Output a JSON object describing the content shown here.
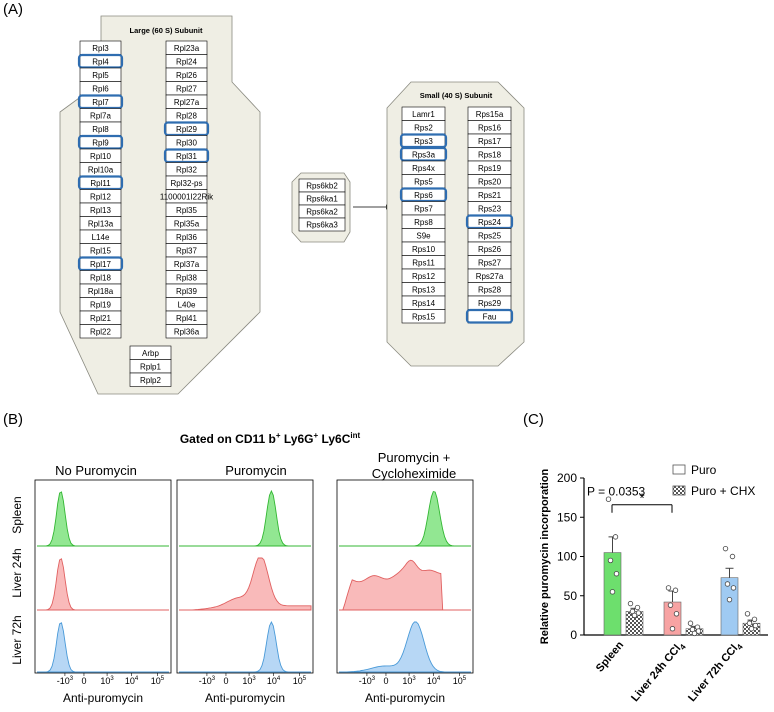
{
  "panels": {
    "A": "(A)",
    "B": "(B)",
    "C": "(C)"
  },
  "colors": {
    "green": "#6ddf6d",
    "red": "#f7a3a3",
    "blue": "#9fcaf2",
    "hl": "#2f6db0",
    "hex": "#efeee4",
    "hexStroke": "#8a8a80"
  },
  "large": {
    "title": "Large (60 S) Subunit",
    "left": [
      "Rpl3",
      "Rpl4",
      "Rpl5",
      "Rpl6",
      "Rpl7",
      "Rpl7a",
      "Rpl8",
      "Rpl9",
      "Rpl10",
      "Rpl10a",
      "Rpl11",
      "Rpl12",
      "Rpl13",
      "Rpl13a",
      "L14e",
      "Rpl15",
      "Rpl17",
      "Rpl18",
      "Rpl18a",
      "Rpl19",
      "Rpl21",
      "Rpl22"
    ],
    "right": [
      "Rpl23a",
      "Rpl24",
      "Rpl26",
      "Rpl27",
      "Rpl27a",
      "Rpl28",
      "Rpl29",
      "Rpl30",
      "Rpl31",
      "Rpl32",
      "Rpl32-ps",
      "1100001I22Rik",
      "Rpl35",
      "Rpl35a",
      "Rpl36",
      "Rpl37",
      "Rpl37a",
      "Rpl38",
      "Rpl39",
      "L40e",
      "Rpl41",
      "Rpl36a"
    ],
    "bottom": [
      "Arbp",
      "Rplp1",
      "Rplp2"
    ],
    "highlight_left": [
      "Rpl4",
      "Rpl7",
      "Rpl9",
      "Rpl11",
      "Rpl17"
    ],
    "highlight_right": [
      "Rpl29",
      "Rpl31"
    ]
  },
  "small": {
    "title": "Small (40 S) Subunit",
    "left": [
      "Lamr1",
      "Rps2",
      "Rps3",
      "Rps3a",
      "Rps4x",
      "Rps5",
      "Rps6",
      "Rps7",
      "Rps8",
      "S9e",
      "Rps10",
      "Rps11",
      "Rps12",
      "Rps13",
      "Rps14",
      "Rps15"
    ],
    "right": [
      "Rps15a",
      "Rps16",
      "Rps17",
      "Rps18",
      "Rps19",
      "Rps20",
      "Rps21",
      "Rps23",
      "Rps24",
      "Rps25",
      "Rps26",
      "Rps27",
      "Rps27a",
      "Rps28",
      "Rps29",
      "Fau"
    ],
    "highlight_left": [
      "Rps3",
      "Rps3a",
      "Rps6"
    ],
    "highlight_right": [
      "Rps24",
      "Fau"
    ]
  },
  "kinases": [
    "Rps6kb2",
    "Rps6ka1",
    "Rps6ka2",
    "Rps6ka3"
  ],
  "flow": {
    "gated_main": "Gated on CD11 b",
    "gated_sup1": "+",
    "gated_mid": " Ly6G",
    "gated_sup2": "+",
    "gated_mid2": " Ly6C",
    "gated_sup3": "int",
    "columns": [
      "No Puromycin",
      "Puromycin",
      "Puromycin +",
      "Cycloheximide"
    ],
    "rows": [
      "Spleen",
      "Liver 24h",
      "Liver 72h"
    ],
    "xlabel": "Anti-puromycin",
    "ticks": [
      "-10",
      "3",
      "0",
      "10",
      "3",
      "10",
      "4",
      "10",
      "5"
    ]
  },
  "chart_data": {
    "type": "bar",
    "ylabel": "Relative puromycin incorporation",
    "ylim": [
      0,
      200
    ],
    "yticks": [
      "0",
      "50",
      "100",
      "150",
      "200"
    ],
    "categories": [
      "Spleen",
      "Liver 24h CCl4",
      "Liver 72h CCl4"
    ],
    "cat_labels": [
      {
        "main": "Spleen",
        "sub": ""
      },
      {
        "main": "Liver 24h CCl",
        "sub": "4"
      },
      {
        "main": "Liver 72h CCl",
        "sub": "4"
      }
    ],
    "series": [
      {
        "name": "Puro",
        "values": [
          105,
          42,
          73
        ],
        "sem": [
          20,
          14,
          12
        ],
        "points": [
          [
            173,
            125,
            95,
            78,
            55
          ],
          [
            60,
            57,
            38,
            27,
            8
          ],
          [
            110,
            100,
            65,
            60,
            45
          ]
        ]
      },
      {
        "name": "Puro + CHX",
        "values": [
          30,
          8,
          15
        ],
        "sem": [
          4,
          3,
          4
        ],
        "points": [
          [
            40,
            35,
            30,
            28,
            25
          ],
          [
            15,
            10,
            7,
            5,
            2
          ],
          [
            27,
            20,
            15,
            12,
            8
          ]
        ]
      }
    ],
    "annotation": "P = 0.0353",
    "significance": "*",
    "legend": [
      "Puro",
      "Puro + CHX"
    ]
  }
}
